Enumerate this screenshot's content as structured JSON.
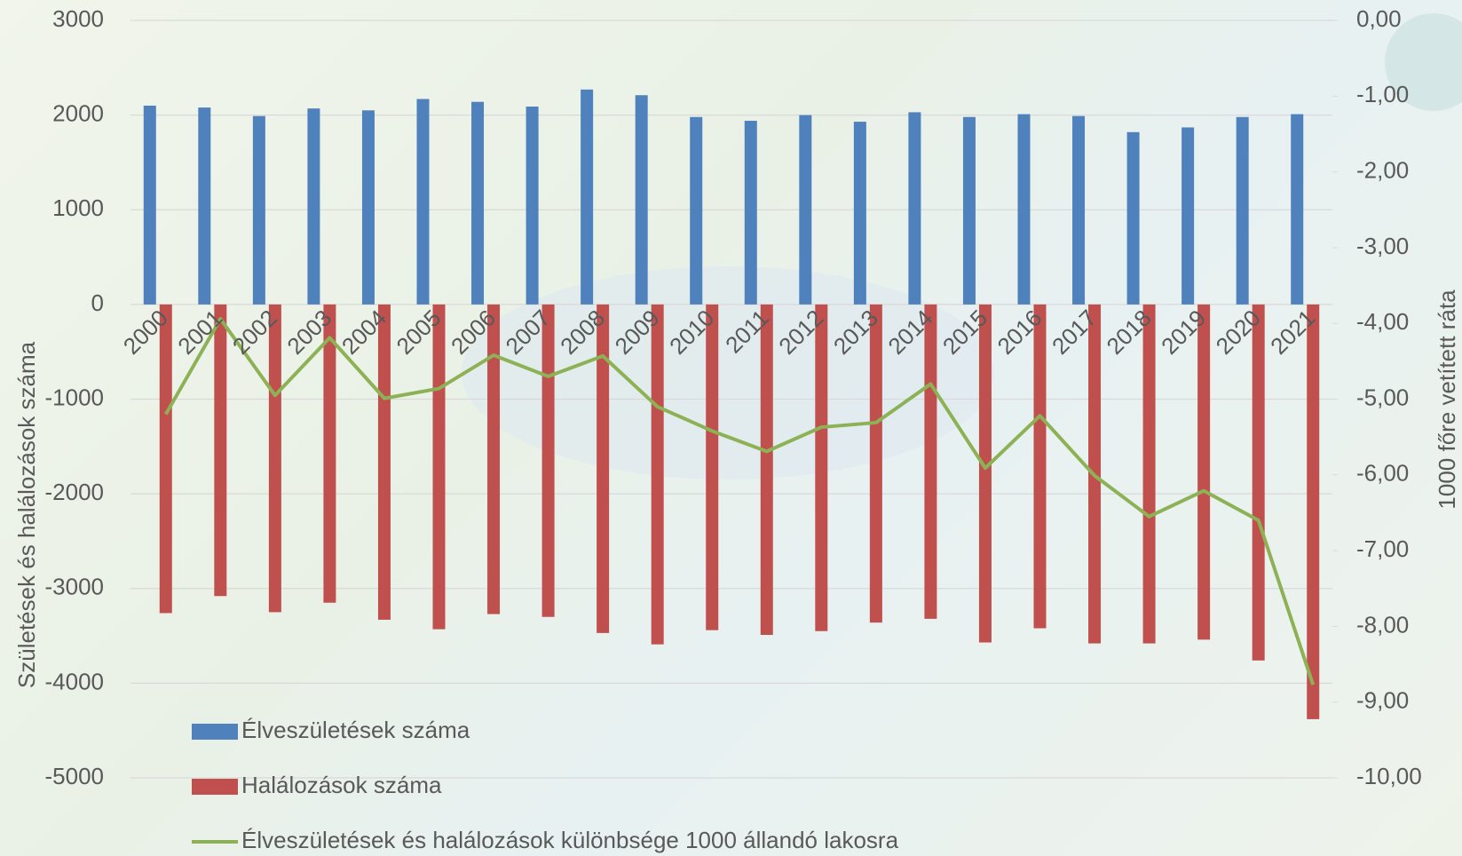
{
  "chart_data": {
    "type": "bar-line",
    "ylabel": "Születések és halálozások száma",
    "y2label": "1000 főre vetített ráta",
    "categories": [
      "2000",
      "2001",
      "2002",
      "2003",
      "2004",
      "2005",
      "2006",
      "2007",
      "2008",
      "2009",
      "2010",
      "2011",
      "2012",
      "2013",
      "2014",
      "2015",
      "2016",
      "2017",
      "2018",
      "2019",
      "2020",
      "2021"
    ],
    "series": [
      {
        "name": "Élveszületések száma",
        "color": "#4f81bd",
        "type": "bar",
        "values": [
          2100,
          2080,
          1990,
          2070,
          2050,
          2170,
          2140,
          2090,
          2270,
          2210,
          1980,
          1940,
          2000,
          1930,
          2030,
          1980,
          2010,
          1990,
          1820,
          1870,
          1980,
          2010
        ]
      },
      {
        "name": "Halálozások száma",
        "color": "#c0504d",
        "type": "bar",
        "values": [
          -3260,
          -3080,
          -3250,
          -3150,
          -3330,
          -3430,
          -3270,
          -3300,
          -3470,
          -3590,
          -3440,
          -3490,
          -3450,
          -3360,
          -3320,
          -3570,
          -3420,
          -3580,
          -3580,
          -3540,
          -3760,
          -4380
        ]
      },
      {
        "name": "Élveszületések és halálozások különbsége 1000 állandó lakosra",
        "color": "#8db255",
        "type": "line",
        "axis": "y2",
        "values": [
          -5.2,
          -3.94,
          -4.95,
          -4.19,
          -4.99,
          -4.86,
          -4.42,
          -4.7,
          -4.43,
          -5.1,
          -5.42,
          -5.69,
          -5.37,
          -5.31,
          -4.8,
          -5.91,
          -5.22,
          -6.01,
          -6.55,
          -6.21,
          -6.6,
          -8.77
        ]
      }
    ],
    "ylim": [
      -5000,
      3000
    ],
    "yticks": [
      -5000,
      -4000,
      -3000,
      -2000,
      -1000,
      0,
      1000,
      2000,
      3000
    ],
    "y2lim": [
      -10,
      0
    ],
    "y2ticks": [
      {
        "value": -10,
        "label": "-10,00"
      },
      {
        "value": -9,
        "label": "-9,00"
      },
      {
        "value": -8,
        "label": "-8,00"
      },
      {
        "value": -7,
        "label": "-7,00"
      },
      {
        "value": -6,
        "label": "-6,00"
      },
      {
        "value": -5,
        "label": "-5,00"
      },
      {
        "value": -4,
        "label": "-4,00"
      },
      {
        "value": -3,
        "label": "-3,00"
      },
      {
        "value": -2,
        "label": "-2,00"
      },
      {
        "value": -1,
        "label": "-1,00"
      },
      {
        "value": 0,
        "label": "0,00"
      }
    ],
    "grid": true
  }
}
